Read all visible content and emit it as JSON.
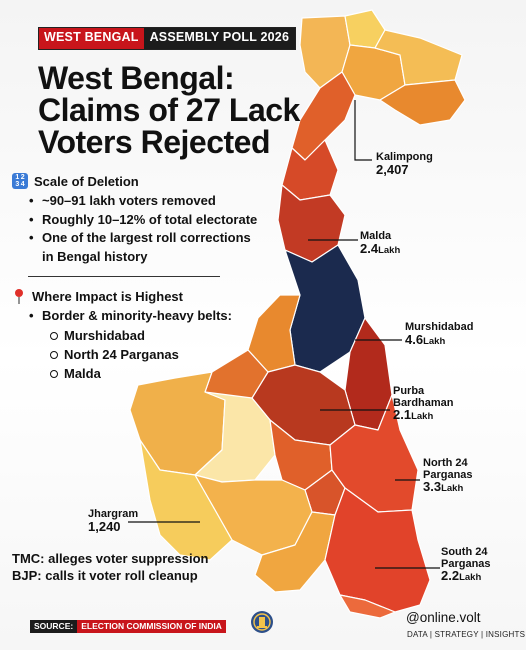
{
  "header": {
    "state": "WEST BENGAL",
    "poll": "ASSEMBLY POLL 2026"
  },
  "title": {
    "line1": "West Bengal:",
    "line2": "Claims of 27 Lack",
    "line3": "Voters Rejected"
  },
  "scale": {
    "heading": "Scale of Deletion",
    "bullets": [
      "~90–91 lakh voters removed",
      "Roughly 10–12% of total electorate",
      "One of the largest roll corrections",
      "in Bengal history"
    ]
  },
  "impact": {
    "heading": "Where Impact is Highest",
    "bullet": "Border & minority-heavy belts:",
    "districts": [
      "Murshidabad",
      "North 24 Parganas",
      "Malda"
    ]
  },
  "labels": {
    "kalimpong": {
      "name": "Kalimpong",
      "value": "2,407"
    },
    "malda": {
      "name": "Malda",
      "value": "2.4",
      "unit": "Lakh"
    },
    "murshidabad": {
      "name": "Murshidabad",
      "value": "4.6",
      "unit": "Lakh"
    },
    "purba": {
      "name1": "Purba",
      "name2": "Bardhaman",
      "value": "2.1",
      "unit": "Lakh"
    },
    "north24": {
      "name1": "North 24",
      "name2": "Parganas",
      "value": "3.3",
      "unit": "Lakh"
    },
    "south24": {
      "name1": "South 24",
      "name2": "Parganas",
      "value": "2.2",
      "unit": "Lakh"
    },
    "jhargram": {
      "name": "Jhargram",
      "value": "1,240"
    }
  },
  "parties": {
    "tmc": "TMC: alleges voter suppression",
    "bjp": "BJP: calls it voter roll cleanup"
  },
  "footer": {
    "source_key": "SOURCE:",
    "source_value": "ELECTION COMMISSION OF INDIA",
    "handle": "@online.volt",
    "tagline": "DATA | STRATEGY | INSIGHTS"
  },
  "colors": {
    "darkest": "#1b2a4e",
    "deep_red": "#b22a1c",
    "red": "#d63d24",
    "orange_red": "#e0602a",
    "orange": "#e8892e",
    "amber": "#f0a640",
    "light_amber": "#f5c35a",
    "pale": "#fbe6a8",
    "brand_red": "#c8151b"
  }
}
